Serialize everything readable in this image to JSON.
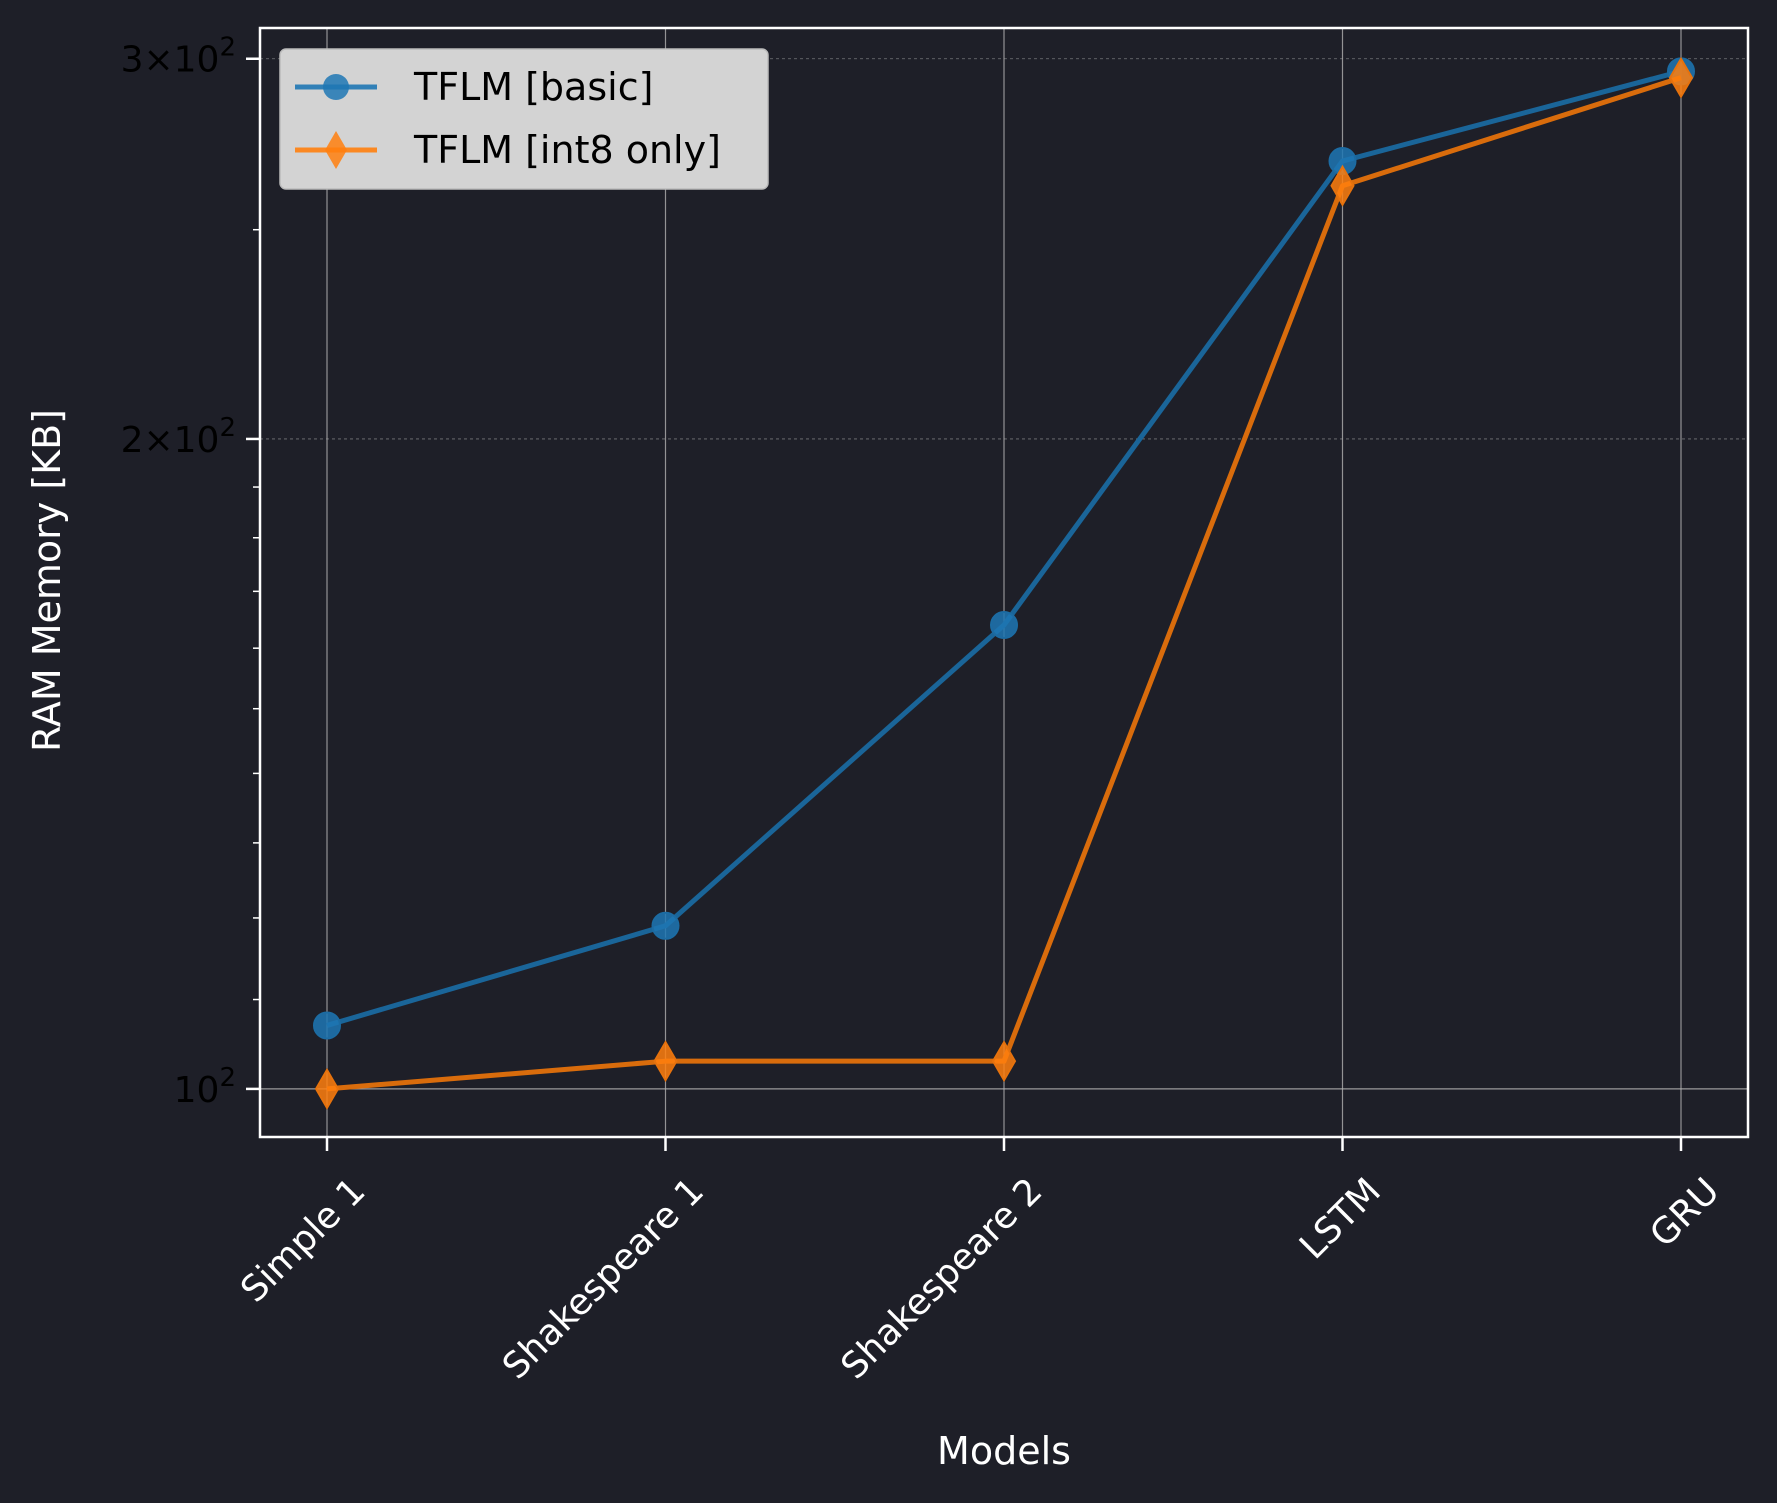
{
  "chart_data": {
    "type": "line",
    "xlabel": "Models",
    "ylabel": "RAM Memory [KB]",
    "yscale": "log",
    "ylim": [
      95,
      310
    ],
    "categories": [
      "Simple 1",
      "Shakespeare 1",
      "Shakespeare 2",
      "LSTM",
      "GRU"
    ],
    "y_ticks": [
      {
        "value": 100,
        "base": "10",
        "exp": "2"
      },
      {
        "value": 200,
        "base": "2×10",
        "exp": "2"
      },
      {
        "value": 300,
        "base": "3×10",
        "exp": "2"
      }
    ],
    "grid": true,
    "legend_position": "upper-left",
    "series": [
      {
        "name": "TFLM [basic]",
        "color": "#1f77b4",
        "marker": "circle",
        "values": [
          107,
          119,
          164,
          269,
          296
        ]
      },
      {
        "name": "TFLM [int8 only]",
        "color": "#ff7f0e",
        "marker": "diamond",
        "values": [
          100,
          103,
          103,
          262,
          294
        ]
      }
    ],
    "background_color": "#1e1f28",
    "frame_color": "#ffffff"
  }
}
